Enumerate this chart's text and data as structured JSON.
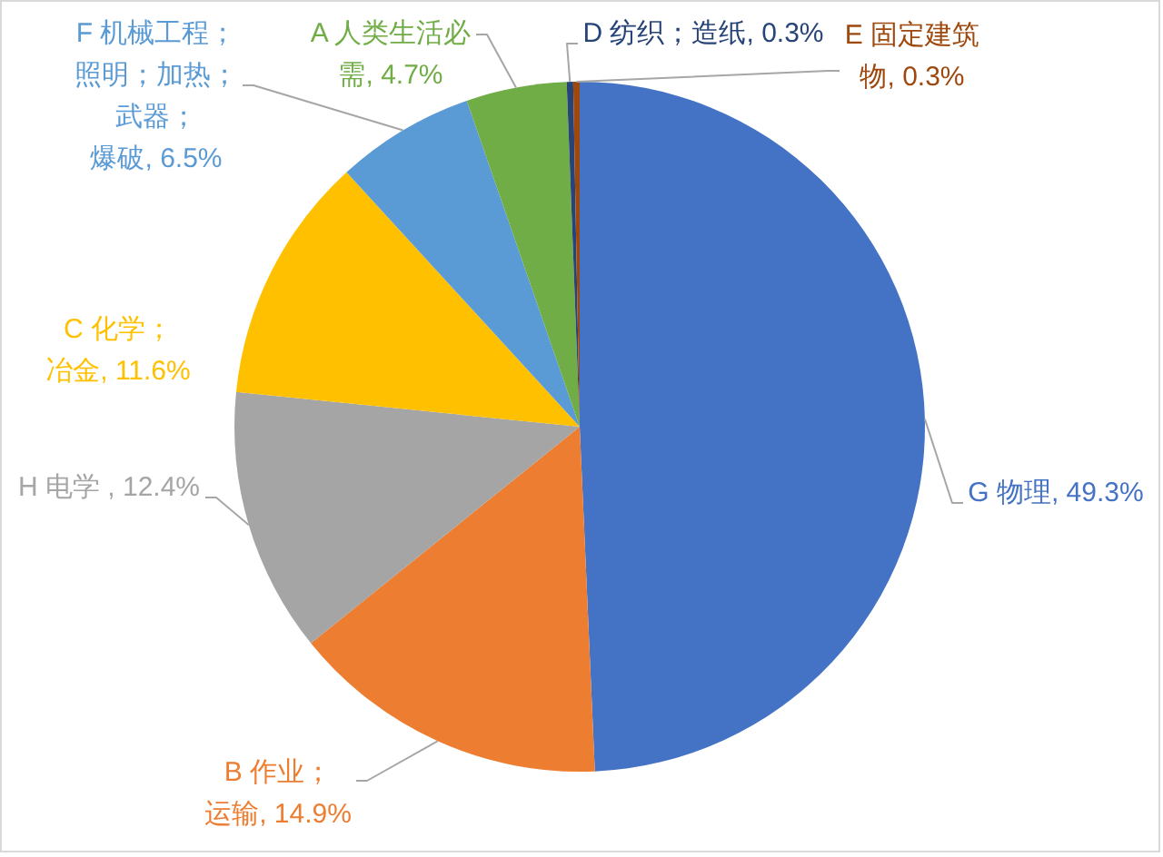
{
  "chart_data": {
    "type": "pie",
    "categories": [
      "G 物理",
      "B 作业；运输",
      "H 电学 ",
      "C 化学；冶金",
      "F 机械工程；照明；加热；武器；爆破",
      "A 人类生活必需",
      "D 纺织；造纸",
      "E 固定建筑物"
    ],
    "values": [
      49.3,
      14.9,
      12.4,
      11.6,
      6.5,
      4.7,
      0.3,
      0.3
    ],
    "value_labels": [
      "49.3%",
      "14.9%",
      "12.4%",
      "11.6%",
      "6.5%",
      "4.7%",
      "0.3%",
      "0.3%"
    ],
    "colors": [
      "#4472c4",
      "#ed7d31",
      "#a5a5a5",
      "#ffc000",
      "#5b9bd5",
      "#70ad47",
      "#264478",
      "#9e480e"
    ]
  }
}
